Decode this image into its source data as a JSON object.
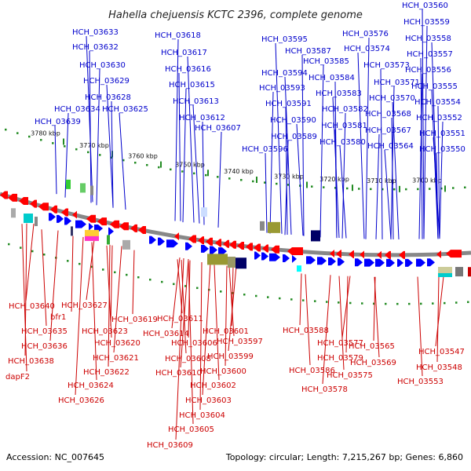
{
  "title": "Hahella chejuensis KCTC 2396, complete genome",
  "footer": {
    "accession": "Accession: NC_007645",
    "summary": "Topology: circular; Length: 7,215,267 bp; Genes: 6,860"
  },
  "colors": {
    "forward_strand": "#0000ff",
    "reverse_strand": "#ff0000",
    "forward_label": "#0000cc",
    "reverse_label": "#cc0000",
    "backbone": "#888888",
    "scale_ticks": "#228b22"
  },
  "scale_ticks": [
    "3780 kbp",
    "3770 kbp",
    "3760 kbp",
    "3750 kbp",
    "3740 kbp",
    "3730 kbp",
    "3720 kbp",
    "3710 kbp",
    "3700 kbp"
  ],
  "forward_genes": [
    "HCH_03633",
    "HCH_03632",
    "HCH_03630",
    "HCH_03629",
    "HCH_03628",
    "HCH_03634",
    "HCH_03625",
    "HCH_03639",
    "HCH_03618",
    "HCH_03617",
    "HCH_03616",
    "HCH_03615",
    "HCH_03613",
    "HCH_03612",
    "HCH_03607",
    "HCH_03595",
    "HCH_03587",
    "HCH_03585",
    "HCH_03594",
    "HCH_03584",
    "HCH_03593",
    "HCH_03583",
    "HCH_03591",
    "HCH_03582",
    "HCH_03590",
    "HCH_03581",
    "HCH_03589",
    "HCH_03580",
    "HCH_03596",
    "HCH_03576",
    "HCH_03574",
    "HCH_03573",
    "HCH_03571",
    "HCH_03570",
    "HCH_03568",
    "HCH_03567",
    "HCH_03564",
    "HCH_03560",
    "HCH_03559",
    "HCH_03558",
    "HCH_03557",
    "HCH_03556",
    "HCH_03555",
    "HCH_03554",
    "HCH_03552",
    "HCH_03551",
    "HCH_03550"
  ],
  "reverse_genes": [
    "HCH_03640",
    "bfr1",
    "HCH_03635",
    "HCH_03636",
    "HCH_03638",
    "dapF2",
    "HCH_03627",
    "HCH_03623",
    "HCH_03620",
    "HCH_03621",
    "HCH_03622",
    "HCH_03624",
    "HCH_03626",
    "HCH_03619",
    "HCH_03611",
    "HCH_03614",
    "HCH_03606",
    "HCH_03608",
    "HCH_03610",
    "HCH_03601",
    "HCH_03597",
    "HCH_03599",
    "HCH_03600",
    "HCH_03602",
    "HCH_03603",
    "HCH_03604",
    "HCH_03605",
    "HCH_03609",
    "HCH_03588",
    "HCH_03586",
    "HCH_03577",
    "HCH_03579",
    "HCH_03575",
    "HCH_03578",
    "HCH_03565",
    "HCH_03569",
    "HCH_03547",
    "HCH_03548",
    "HCH_03553"
  ]
}
